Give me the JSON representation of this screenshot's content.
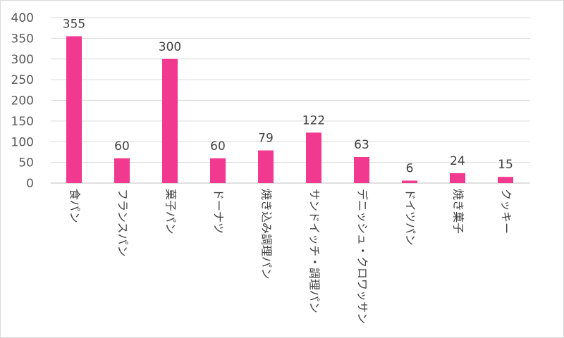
{
  "chart_data": {
    "type": "bar",
    "categories": [
      "食パン",
      "フランスパン",
      "菓子パン",
      "ドーナツ",
      "焼き込み調理パン",
      "サンドイッチ・調理パン",
      "デニッシュ・クロワッサン",
      "ドイツパン",
      "焼き菓子",
      "クッキー"
    ],
    "values": [
      355,
      60,
      300,
      60,
      79,
      122,
      63,
      6,
      24,
      15
    ],
    "ylim": [
      0,
      400
    ],
    "yticks": [
      0,
      50,
      100,
      150,
      200,
      250,
      300,
      350,
      400
    ],
    "data_labels": [
      "355",
      "60",
      "300",
      "60",
      "79",
      "122",
      "63",
      "6",
      "24",
      "15"
    ],
    "bar_color": "#f0398f",
    "grid": true,
    "legend": "none"
  }
}
